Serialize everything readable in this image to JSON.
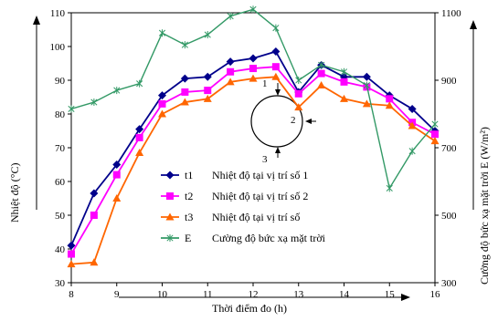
{
  "chart_data": {
    "type": "line",
    "title": "",
    "xlabel": "Thời điểm đo (h)",
    "ylabel": "Nhiệt độ (°C)",
    "y2label": "Cường độ bức xạ mặt trời E (W/m²)",
    "xlim": [
      8,
      16
    ],
    "ylim": [
      30,
      110
    ],
    "y2lim": [
      300,
      1100
    ],
    "xticks": [
      "8",
      "9",
      "10",
      "11",
      "12",
      "13",
      "14",
      "15",
      "16"
    ],
    "yticks": [
      "30",
      "40",
      "50",
      "60",
      "70",
      "80",
      "90",
      "100",
      "110"
    ],
    "y2ticks": [
      "300",
      "500",
      "700",
      "900",
      "1100"
    ],
    "x": [
      8,
      8.5,
      9,
      9.5,
      10,
      10.5,
      11,
      11.5,
      12,
      12.5,
      13,
      13.5,
      14,
      14.5,
      15,
      15.5,
      16
    ],
    "series": [
      {
        "name": "t1",
        "label": "Nhiệt độ tại vị trí số 1",
        "color": "#00008b",
        "marker": "diamond",
        "axis": "left",
        "values": [
          41,
          56.5,
          65,
          75.5,
          85.5,
          90.5,
          91,
          95.5,
          96.5,
          98.5,
          86.5,
          94.5,
          91,
          91,
          85.5,
          81.5,
          75
        ]
      },
      {
        "name": "t2",
        "label": "Nhiệt độ tại vị trí số 2",
        "color": "#ff00ff",
        "marker": "square",
        "axis": "left",
        "values": [
          38.5,
          50,
          62,
          73,
          83,
          86.5,
          87,
          92.5,
          93.5,
          94,
          86,
          92,
          89.5,
          88,
          84.5,
          77.5,
          74
        ]
      },
      {
        "name": "t3",
        "label": "Nhiệt độ tại vị trí số",
        "color": "#ff6600",
        "marker": "triangle",
        "axis": "left",
        "values": [
          35.5,
          36,
          55,
          68.5,
          80,
          83.5,
          84.5,
          89.5,
          90.5,
          91,
          82,
          88.5,
          84.5,
          83,
          82.5,
          76.5,
          72
        ]
      },
      {
        "name": "E",
        "label": "Cường độ bức xạ mặt trời",
        "color": "#339966",
        "marker": "star",
        "axis": "right",
        "values": [
          815,
          835,
          870,
          890,
          1040,
          1005,
          1035,
          1090,
          1110,
          1055,
          900,
          945,
          925,
          885,
          580,
          690,
          770
        ]
      }
    ],
    "legend_position": "bottom-center",
    "legend": [
      {
        "key": "t1",
        "text": "Nhiệt độ tại vị trí số 1"
      },
      {
        "key": "t2",
        "text": "Nhiệt độ tại vị trí số 2"
      },
      {
        "key": "t3",
        "text": "Nhiệt độ tại vị trí số"
      },
      {
        "key": "E",
        "text": "Cường độ bức xạ mặt trời"
      }
    ],
    "inset_labels": [
      "1",
      "2",
      "3"
    ]
  }
}
